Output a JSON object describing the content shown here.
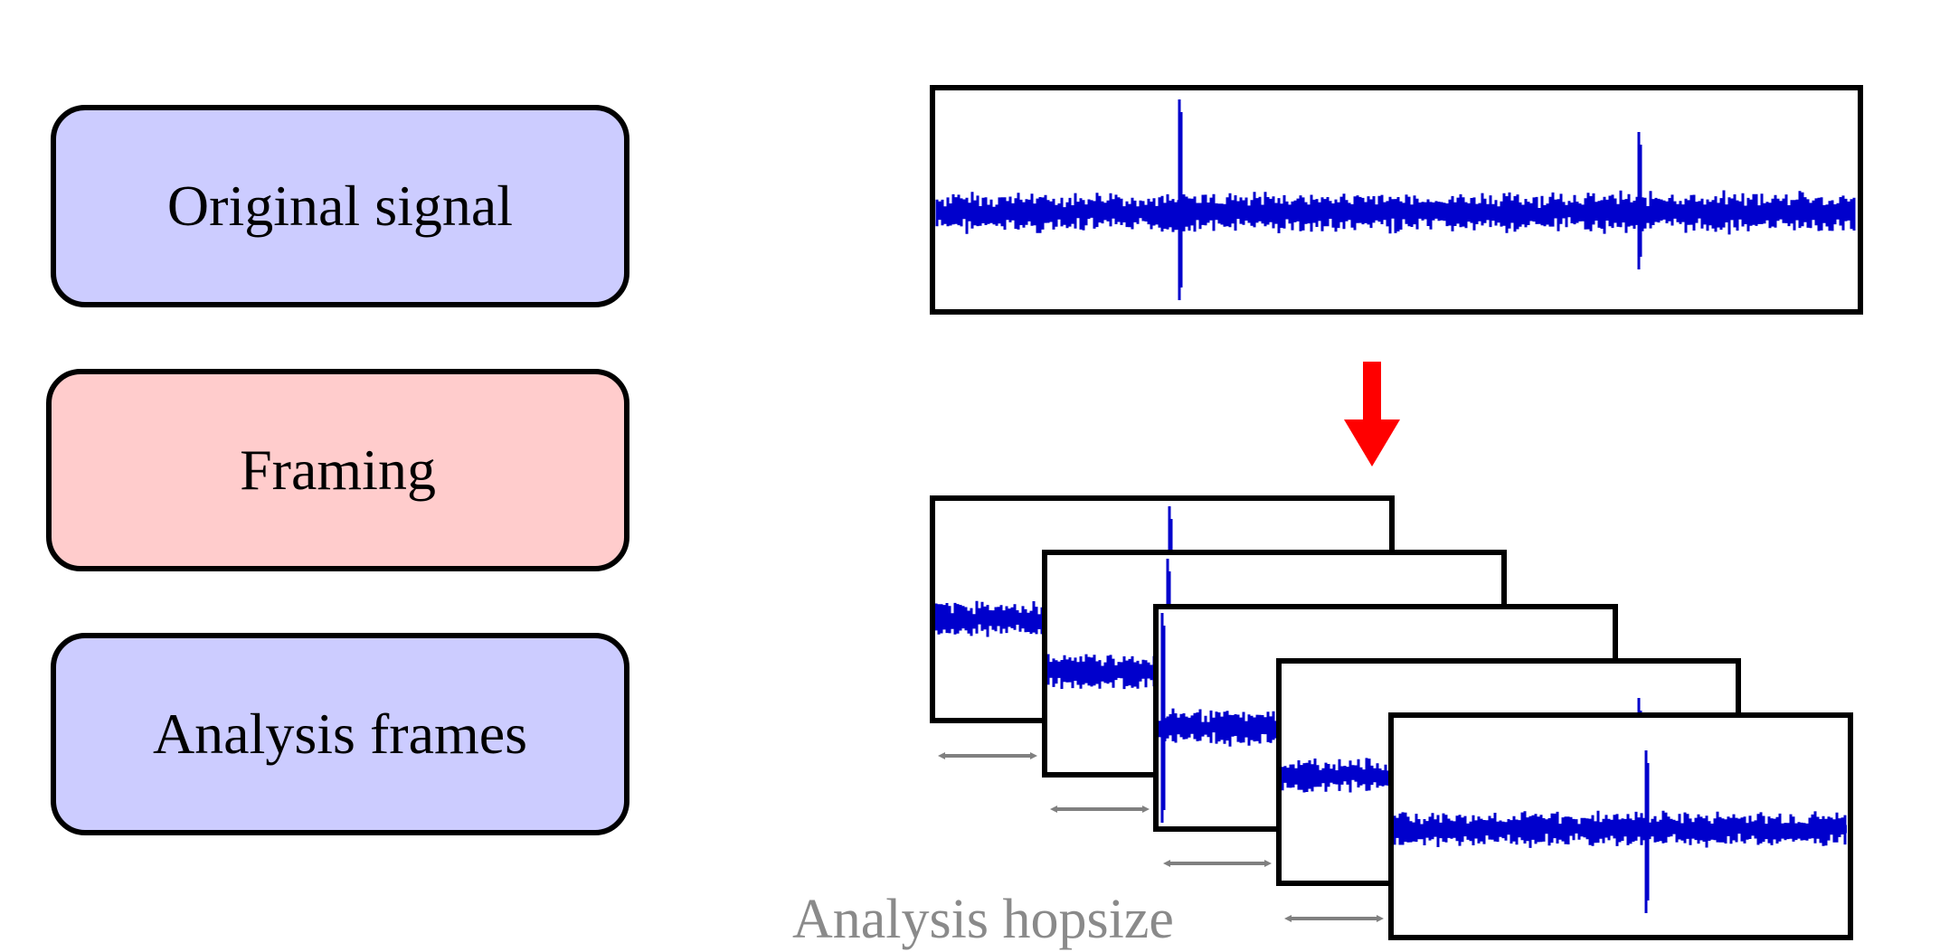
{
  "steps": [
    {
      "label": "Original signal",
      "fill": "#ccccff"
    },
    {
      "label": "Framing",
      "fill": "#ffcccc"
    },
    {
      "label": "Analysis frames",
      "fill": "#ccccff"
    }
  ],
  "hop_label": "Analysis hopsize",
  "colors": {
    "waveform": "#0000cc",
    "arrow": "#ff0000",
    "hop_arrow": "#808080",
    "frame_border": "#000000"
  },
  "frame_count": 5
}
